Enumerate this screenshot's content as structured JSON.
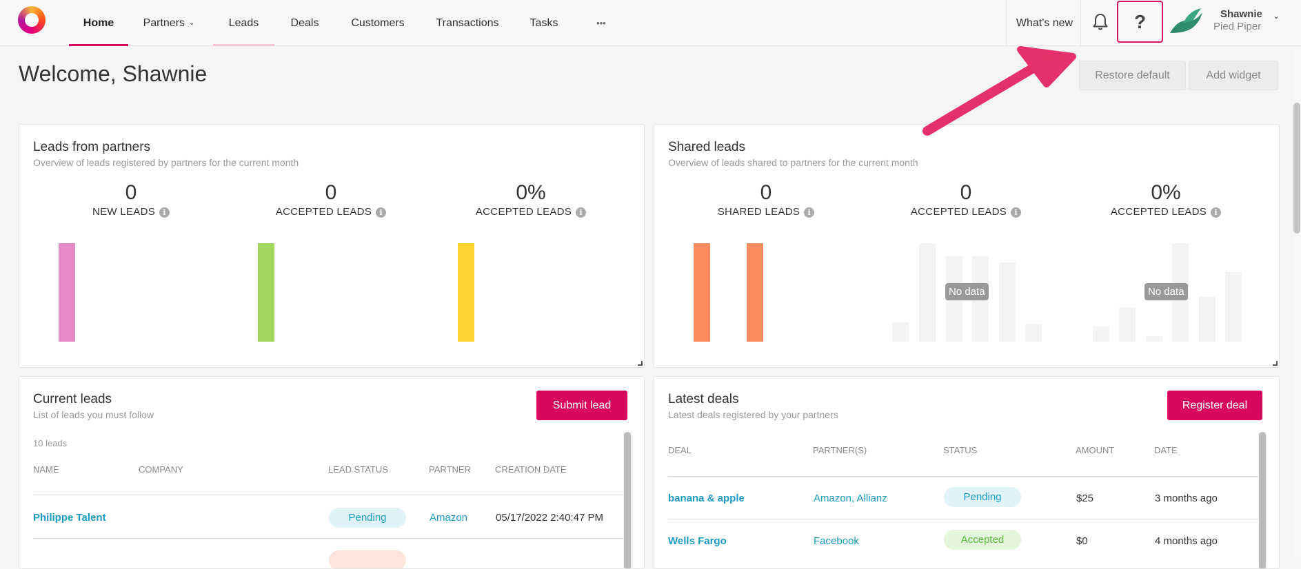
{
  "colors": {
    "accent": "#d8065e",
    "link": "#1a9bc2",
    "help_highlight": "#d6145f",
    "arrow": "#e5306b",
    "home_underline": "#d8065e",
    "leads_underline": "#f6c3d6",
    "pending_bg": "#dff3f8",
    "pending_text": "#1a9bc2",
    "accepted_bg": "#e4f6dc",
    "accepted_text": "#5cb83a",
    "accepted_lead_bg": "#fde5dc"
  },
  "nav": {
    "items": [
      {
        "label": "Home",
        "active": true
      },
      {
        "label": "Partners",
        "caret": "⌄"
      },
      {
        "label": "Leads"
      },
      {
        "label": "Deals"
      },
      {
        "label": "Customers"
      },
      {
        "label": "Transactions"
      },
      {
        "label": "Tasks"
      },
      {
        "label": "•••"
      }
    ],
    "whats_new": "What's new",
    "help": "?",
    "user_name": "Shawnie",
    "user_org": "Pied Piper",
    "user_caret": "⌄"
  },
  "page": {
    "welcome": "Welcome, Shawnie",
    "restore_default": "Restore default",
    "add_widget": "Add widget"
  },
  "leads_from_partners": {
    "title": "Leads from partners",
    "subtitle": "Overview of leads registered by partners for the current month",
    "metrics": [
      {
        "value": "0",
        "label": "NEW LEADS",
        "color": "#e98bc6"
      },
      {
        "value": "0",
        "label": "ACCEPTED LEADS",
        "color": "#a3d65c"
      },
      {
        "value": "0%",
        "label": "ACCEPTED LEADS",
        "color": "#fcd535"
      }
    ]
  },
  "shared_leads": {
    "title": "Shared leads",
    "subtitle": "Overview of leads shared to partners for the current month",
    "metrics": [
      {
        "value": "0",
        "label": "SHARED LEADS",
        "color": "#fc8b5e"
      },
      {
        "value": "0",
        "label": "ACCEPTED LEADS"
      },
      {
        "value": "0%",
        "label": "ACCEPTED LEADS"
      }
    ],
    "no_data": "No data"
  },
  "current_leads": {
    "title": "Current leads",
    "subtitle": "List of leads you must follow",
    "submit_label": "Submit lead",
    "count": "10 leads",
    "columns": [
      "NAME",
      "COMPANY",
      "LEAD STATUS",
      "PARTNER",
      "CREATION DATE"
    ],
    "rows": [
      {
        "name": "Philippe Talent",
        "company": "",
        "status": "Pending",
        "partner": "Amazon",
        "date": "05/17/2022 2:40:47 PM"
      }
    ]
  },
  "latest_deals": {
    "title": "Latest deals",
    "subtitle": "Latest deals registered by your partners",
    "register_label": "Register deal",
    "columns": [
      "DEAL",
      "PARTNER(S)",
      "STATUS",
      "AMOUNT",
      "DATE"
    ],
    "rows": [
      {
        "deal": "banana & apple",
        "partners": "Amazon, Allianz",
        "status": "Pending",
        "amount": "$25",
        "date": "3 months ago"
      },
      {
        "deal": "Wells Fargo",
        "partners": "Facebook",
        "status": "Accepted",
        "amount": "$0",
        "date": "4 months ago"
      }
    ]
  }
}
